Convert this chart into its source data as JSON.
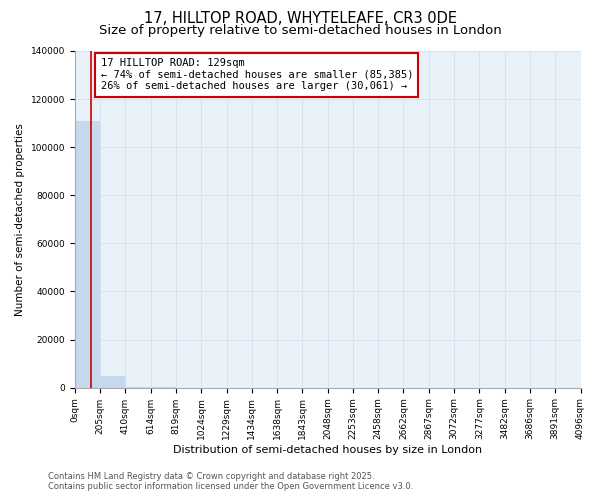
{
  "title": "17, HILLTOP ROAD, WHYTELEAFE, CR3 0DE",
  "subtitle": "Size of property relative to semi-detached houses in London",
  "xlabel": "Distribution of semi-detached houses by size in London",
  "ylabel": "Number of semi-detached properties",
  "property_size": 129,
  "annotation_line1": "17 HILLTOP ROAD: 129sqm",
  "annotation_line2": "← 74% of semi-detached houses are smaller (85,385)",
  "annotation_line3": "26% of semi-detached houses are larger (30,061) →",
  "bin_edges": [
    0,
    205,
    410,
    614,
    819,
    1024,
    1229,
    1434,
    1638,
    1843,
    2048,
    2253,
    2458,
    2662,
    2867,
    3072,
    3277,
    3482,
    3686,
    3891,
    4096
  ],
  "bin_labels": [
    "0sqm",
    "205sqm",
    "410sqm",
    "614sqm",
    "819sqm",
    "1024sqm",
    "1229sqm",
    "1434sqm",
    "1638sqm",
    "1843sqm",
    "2048sqm",
    "2253sqm",
    "2458sqm",
    "2662sqm",
    "2867sqm",
    "3072sqm",
    "3277sqm",
    "3482sqm",
    "3686sqm",
    "3891sqm",
    "4096sqm"
  ],
  "bar_heights": [
    111000,
    5000,
    300,
    80,
    20,
    8,
    3,
    1,
    1,
    0,
    0,
    0,
    0,
    0,
    0,
    0,
    0,
    0,
    0,
    0
  ],
  "bar_color": "#c5d8ee",
  "grid_color": "#d0dce8",
  "bg_color": "#e8f0f8",
  "red_line_color": "#cc0000",
  "ylim": [
    0,
    140000
  ],
  "yticks": [
    0,
    20000,
    40000,
    60000,
    80000,
    100000,
    120000,
    140000
  ],
  "footer_line1": "Contains HM Land Registry data © Crown copyright and database right 2025.",
  "footer_line2": "Contains public sector information licensed under the Open Government Licence v3.0.",
  "title_fontsize": 10.5,
  "subtitle_fontsize": 9.5,
  "tick_fontsize": 6.5,
  "ylabel_fontsize": 7.5,
  "xlabel_fontsize": 8,
  "annotation_fontsize": 7.5,
  "footer_fontsize": 6
}
